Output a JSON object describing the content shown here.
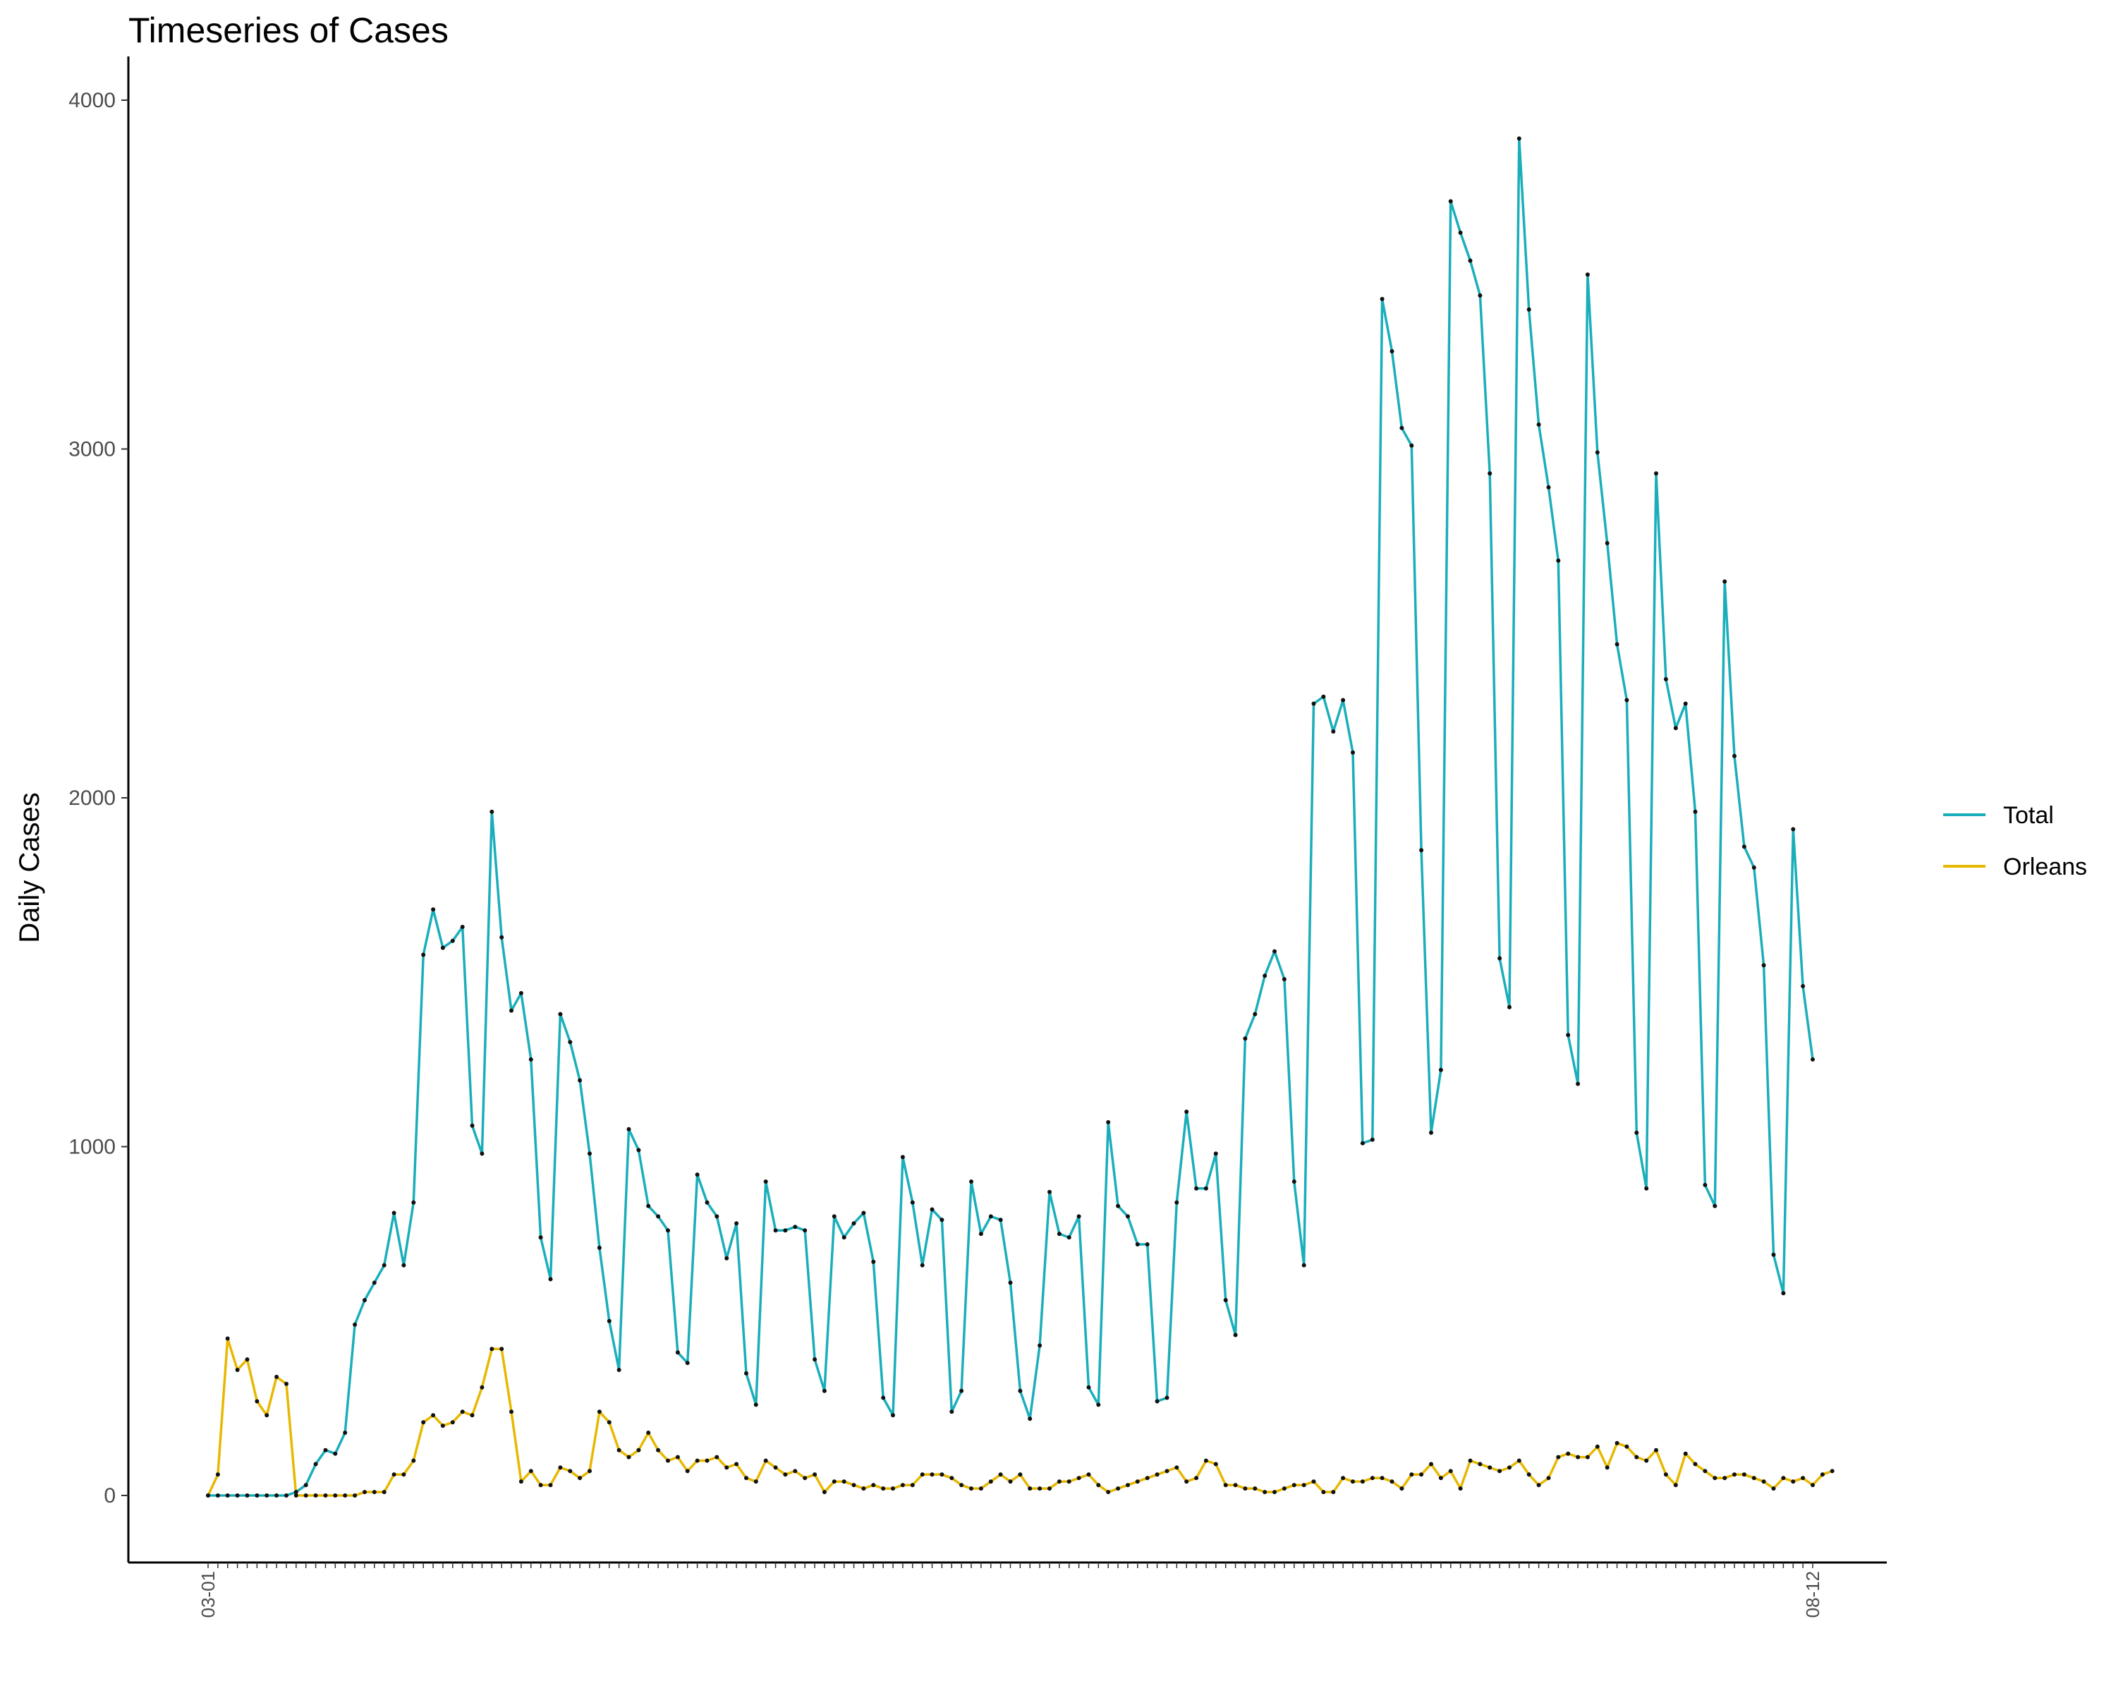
{
  "chart_data": {
    "type": "line",
    "title": "Timeseries of Cases",
    "xlabel": "",
    "ylabel": "Daily Cases",
    "ylim": [
      -200,
      4100
    ],
    "yticks": [
      0,
      1000,
      2000,
      3000,
      4000
    ],
    "grid": false,
    "legend_position": "right",
    "x_first_label": "03-01",
    "x_last_label": "08-12",
    "series": [
      {
        "name": "Total",
        "color": "#1AAEBB",
        "values": [
          0,
          0,
          0,
          0,
          0,
          0,
          0,
          0,
          0,
          10,
          30,
          90,
          130,
          120,
          180,
          490,
          560,
          610,
          660,
          810,
          660,
          840,
          1550,
          1680,
          1570,
          1590,
          1630,
          1060,
          980,
          1960,
          1600,
          1390,
          1440,
          1250,
          740,
          620,
          1380,
          1300,
          1190,
          980,
          710,
          500,
          360,
          1050,
          990,
          830,
          800,
          760,
          410,
          380,
          920,
          840,
          800,
          680,
          780,
          350,
          260,
          900,
          760,
          760,
          770,
          760,
          390,
          300,
          800,
          740,
          780,
          810,
          670,
          280,
          230,
          970,
          840,
          660,
          820,
          790,
          240,
          300,
          900,
          750,
          800,
          790,
          610,
          300,
          220,
          430,
          870,
          750,
          740,
          800,
          310,
          260,
          1070,
          830,
          800,
          720,
          720,
          270,
          280,
          840,
          1100,
          880,
          880,
          980,
          560,
          460,
          1310,
          1380,
          1490,
          1560,
          1480,
          900,
          660,
          2270,
          2290,
          2190,
          2280,
          2130,
          1010,
          1020,
          3430,
          3280,
          3060,
          3010,
          1850,
          1040,
          1220,
          3710,
          3620,
          3540,
          3440,
          2930,
          1540,
          1400,
          3890,
          3400,
          3070,
          2890,
          2680,
          1320,
          1180,
          3500,
          2990,
          2730,
          2440,
          2280,
          1040,
          880,
          2930,
          2340,
          2200,
          2270,
          1960,
          890,
          830,
          2620,
          2120,
          1860,
          1800,
          1520,
          690,
          580,
          1910,
          1460,
          1250
        ]
      },
      {
        "name": "Orleans",
        "color": "#E7B800",
        "values": [
          0,
          60,
          450,
          360,
          390,
          270,
          230,
          340,
          320,
          0,
          0,
          0,
          0,
          0,
          0,
          0,
          10,
          10,
          10,
          60,
          60,
          100,
          210,
          230,
          200,
          210,
          240,
          230,
          310,
          420,
          420,
          240,
          40,
          70,
          30,
          30,
          80,
          70,
          50,
          70,
          240,
          210,
          130,
          110,
          130,
          180,
          130,
          100,
          110,
          70,
          100,
          100,
          110,
          80,
          90,
          50,
          40,
          100,
          80,
          60,
          70,
          50,
          60,
          10,
          40,
          40,
          30,
          20,
          30,
          20,
          20,
          30,
          30,
          60,
          60,
          60,
          50,
          30,
          20,
          20,
          40,
          60,
          40,
          60,
          20,
          20,
          20,
          40,
          40,
          50,
          60,
          30,
          10,
          20,
          30,
          40,
          50,
          60,
          70,
          80,
          40,
          50,
          100,
          90,
          30,
          30,
          20,
          20,
          10,
          10,
          20,
          30,
          30,
          40,
          10,
          10,
          50,
          40,
          40,
          50,
          50,
          40,
          20,
          60,
          60,
          90,
          50,
          70,
          20,
          100,
          90,
          80,
          70,
          80,
          100,
          60,
          30,
          50,
          110,
          120,
          110,
          110,
          140,
          80,
          150,
          140,
          110,
          100,
          130,
          60,
          30,
          120,
          90,
          70,
          50,
          50,
          60,
          60,
          50,
          40,
          20,
          50,
          40,
          50,
          30,
          60,
          70
        ]
      }
    ]
  }
}
